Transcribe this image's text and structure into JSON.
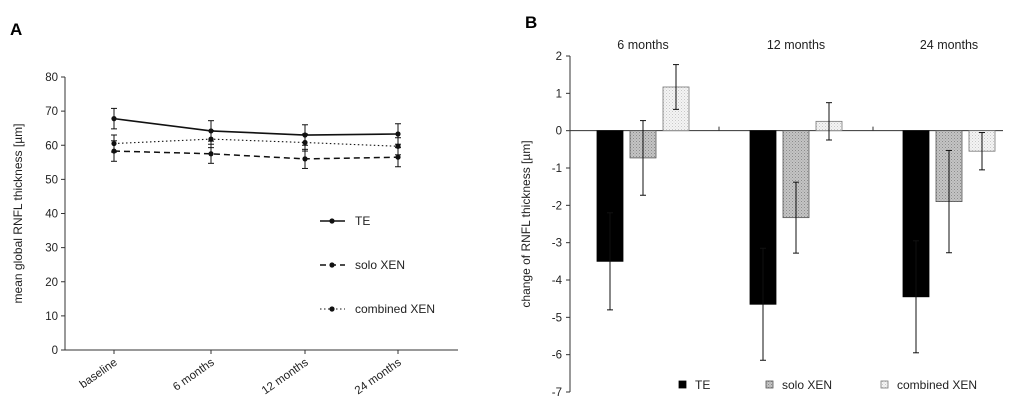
{
  "panels": {
    "a_label": "A",
    "b_label": "B"
  },
  "chart_data": [
    {
      "type": "line",
      "panel": "A",
      "title": "",
      "xlabel": "",
      "ylabel": "mean global RNFL thickness [µm]",
      "categories": [
        "baseline",
        "6 months",
        "12 months",
        "24 months"
      ],
      "ylim": [
        0,
        80
      ],
      "yticks": [
        0,
        10,
        20,
        30,
        40,
        50,
        60,
        70,
        80
      ],
      "grid": false,
      "legend_position": "right",
      "series": [
        {
          "name": "TE",
          "style": "solid",
          "values": [
            67.8,
            64.2,
            63.0,
            63.3
          ],
          "errors": [
            3.0,
            3.0,
            3.0,
            3.0
          ]
        },
        {
          "name": "solo XEN",
          "style": "dashed",
          "values": [
            58.3,
            57.5,
            56.0,
            56.5
          ],
          "errors": [
            3.0,
            2.8,
            2.8,
            2.8
          ]
        },
        {
          "name": "combined XEN",
          "style": "dotted",
          "values": [
            60.5,
            61.8,
            60.8,
            59.7
          ],
          "errors": [
            2.5,
            2.5,
            2.5,
            2.5
          ]
        }
      ]
    },
    {
      "type": "bar",
      "panel": "B",
      "title": "",
      "xlabel": "",
      "ylabel": "change of RNFL thickness [µm]",
      "categories": [
        "6 months",
        "12 months",
        "24 months"
      ],
      "ylim": [
        -7,
        2
      ],
      "yticks": [
        -7,
        -6,
        -5,
        -4,
        -3,
        -2,
        -1,
        0,
        1,
        2
      ],
      "grid": false,
      "legend_position": "bottom",
      "series": [
        {
          "name": "TE",
          "fill": "#000000",
          "values": [
            -3.5,
            -4.65,
            -4.45
          ],
          "errors": [
            1.3,
            1.5,
            1.5
          ]
        },
        {
          "name": "solo XEN",
          "fill": "#b8b8b8",
          "values": [
            -0.73,
            -2.33,
            -1.9
          ],
          "errors": [
            1.0,
            0.95,
            1.37
          ]
        },
        {
          "name": "combined XEN",
          "fill": "#f2f2f2",
          "values": [
            1.17,
            0.25,
            -0.55
          ],
          "errors": [
            0.6,
            0.5,
            0.5
          ]
        }
      ]
    }
  ]
}
